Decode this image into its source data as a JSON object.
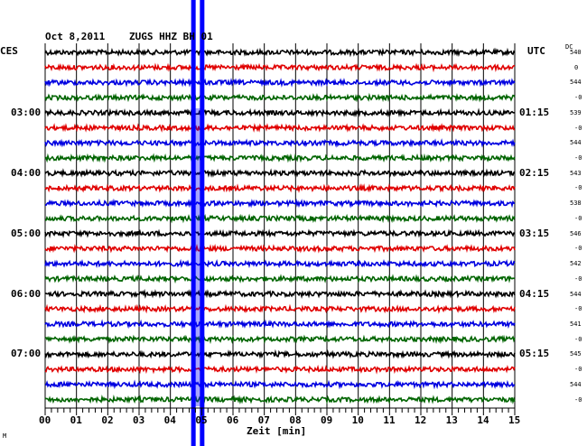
{
  "header": {
    "date": "Oct 8,2011",
    "station": "ZUGS HHZ BH 01",
    "left_zone": "CES",
    "right_zone": "UTC",
    "dc_label": "DC",
    "footnote": "M"
  },
  "chart_data": {
    "type": "line",
    "title": "Oct 8,2011   ZUGS HHZ BH 01",
    "xlabel": "Zeit [min]",
    "xlim": [
      0,
      15
    ],
    "x_ticks": [
      "00",
      "01",
      "02",
      "03",
      "04",
      "05",
      "06",
      "07",
      "08",
      "09",
      "10",
      "11",
      "12",
      "13",
      "14",
      "15"
    ],
    "grid": true,
    "trace_colors": [
      "#000000",
      "#e00000",
      "#0000e0",
      "#006400"
    ],
    "left_time_labels": [
      {
        "row": 4,
        "label": "03:00"
      },
      {
        "row": 8,
        "label": "04:00"
      },
      {
        "row": 12,
        "label": "05:00"
      },
      {
        "row": 16,
        "label": "06:00"
      },
      {
        "row": 20,
        "label": "07:00"
      }
    ],
    "right_time_labels": [
      {
        "row": 4,
        "label": "01:15"
      },
      {
        "row": 8,
        "label": "02:15"
      },
      {
        "row": 12,
        "label": "03:15"
      },
      {
        "row": 16,
        "label": "04:15"
      },
      {
        "row": 20,
        "label": "05:15"
      }
    ],
    "dc_values": [
      "540",
      "0",
      "544",
      "-0",
      "539",
      "-0",
      "544",
      "-0",
      "543",
      "-0",
      "538",
      "-0",
      "546",
      "-0",
      "542",
      "-0",
      "544",
      "-0",
      "541",
      "-0",
      "545",
      "-0",
      "544",
      "-0"
    ],
    "event_marker": {
      "color": "#0000ff",
      "x_min": [
        4.75,
        5.0
      ]
    }
  }
}
